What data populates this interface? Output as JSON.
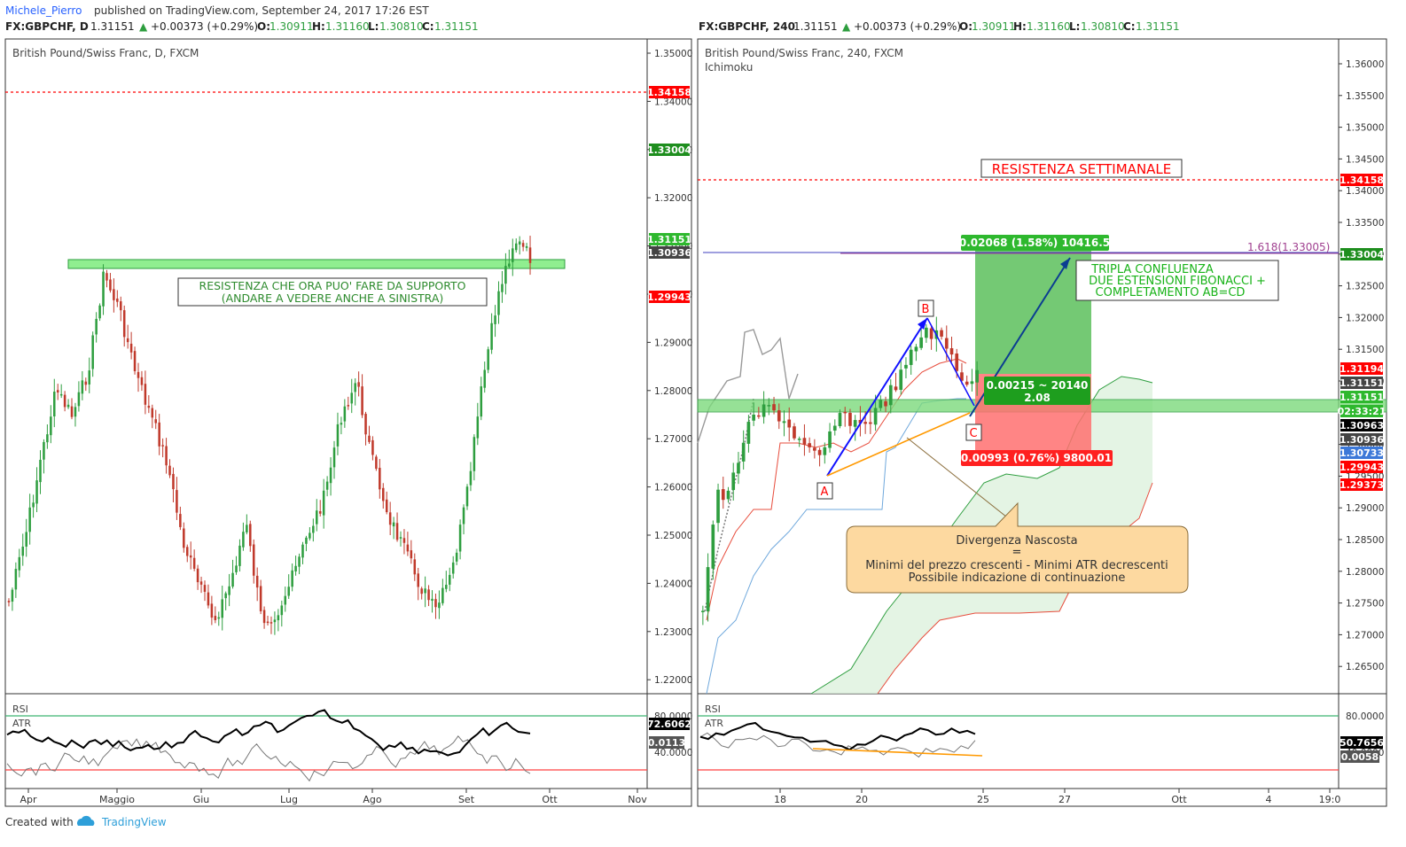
{
  "header": {
    "author": "Michele_Pierro",
    "published": " published on TradingView.com, September 24, 2017 17:26 EST"
  },
  "footer": {
    "created_with": "Created with",
    "brand": "TradingView"
  },
  "colors": {
    "up": "#2e9e3f",
    "down": "#c0392b",
    "zone": "#90ee90",
    "support_band": "#7cda7c",
    "resistance_dash": "#ff0000",
    "fib_line": "#3f3fbf",
    "rsi_upper": "#3cb371",
    "rsi_lower": "#ff4040",
    "profit": "#5cbf5c",
    "loss": "#ff7070",
    "note_box": "#fdd9a0"
  },
  "left": {
    "symbol": "FX:GBPCHF, D",
    "last": "1.31151",
    "change": "+0.00373 (+0.29%)",
    "o_label": "O:",
    "o": "1.30911",
    "h_label": "H:",
    "h": "1.31160",
    "l_label": "L:",
    "l": "1.30810",
    "c_label": "C:",
    "c": "1.31151",
    "title": "British Pound/Swiss Franc, D, FXCM",
    "price_axis": [
      "1.35000",
      "1.34000",
      "1.33000",
      "1.32000",
      "1.31000",
      "1.30000",
      "1.29000",
      "1.28000",
      "1.27000",
      "1.26000",
      "1.25000",
      "1.24000",
      "1.23000",
      "1.22000"
    ],
    "badges": {
      "resistance": "1.34158",
      "fib": "1.33004",
      "last": "1.31151",
      "mid": "1.30936",
      "low": "1.29943"
    },
    "annotation": [
      "RESISTENZA CHE ORA PUO' FARE DA SUPPORTO",
      "(ANDARE A VEDERE ANCHE A SINISTRA)"
    ],
    "rsi_label": "RSI",
    "atr_label": "ATR",
    "rsi_axis": [
      "80.0000",
      "40.0000"
    ],
    "rsi_badge": "72.6062",
    "atr_badge": "0.0113",
    "time_axis": [
      "Apr",
      "Maggio",
      "Giu",
      "Lug",
      "Ago",
      "Set",
      "Ott",
      "Nov"
    ]
  },
  "right": {
    "symbol": "FX:GBPCHF, 240",
    "last": "1.31151",
    "change": "+0.00373 (+0.29%)",
    "o_label": "O:",
    "o": "1.30911",
    "h_label": "H:",
    "h": "1.31160",
    "l_label": "L:",
    "l": "1.30810",
    "c_label": "C:",
    "c": "1.31151",
    "title": "British Pound/Swiss Franc, 240, FXCM",
    "indicator": "Ichimoku",
    "price_axis": [
      "1.36000",
      "1.35500",
      "1.35000",
      "1.34500",
      "1.34000",
      "1.33500",
      "1.33000",
      "1.32500",
      "1.32000",
      "1.31500",
      "1.31000",
      "1.30500",
      "1.30000",
      "1.29500",
      "1.29000",
      "1.28500",
      "1.28000",
      "1.27500",
      "1.27000",
      "1.26500"
    ],
    "badges": {
      "resistance": "1.34158",
      "fib": "1.33004",
      "red1": "1.31194",
      "last": "1.31151",
      "green": "1.31151",
      "timer": "02:33:21",
      "dark1": "1.30963",
      "dark2": "1.30936",
      "blue": "1.30733",
      "red2": "1.29943",
      "red3": "1.29373"
    },
    "resistance_label": "RESISTENZA SETTIMANALE",
    "fib_label": "1.618(1.33005)",
    "profit_label": "0.02068 (1.58%) 10416.5",
    "loss_label": "0.00993 (0.76%) 9800.01",
    "rr_line1": "0.00215 ~ 20140",
    "rr_line2": "2.08",
    "confluence": [
      "TRIPLA CONFLUENZA",
      "DUE ESTENSIONI FIBONACCI +",
      "COMPLETAMENTO AB=CD"
    ],
    "point_a": "A",
    "point_b": "B",
    "point_c": "C",
    "divergence": [
      "Divergenza Nascosta",
      "=",
      "Minimi del prezzo crescenti - Minimi ATR decrescenti",
      "Possibile indicazione di continuazione"
    ],
    "rsi_label": "RSI",
    "atr_label": "ATR",
    "rsi_axis": [
      "80.0000",
      "40.0000"
    ],
    "rsi_badge": "50.7656",
    "atr_badge": "0.0058",
    "time_axis": [
      "18",
      "20",
      "25",
      "27",
      "Ott",
      "4",
      "19:0"
    ]
  }
}
